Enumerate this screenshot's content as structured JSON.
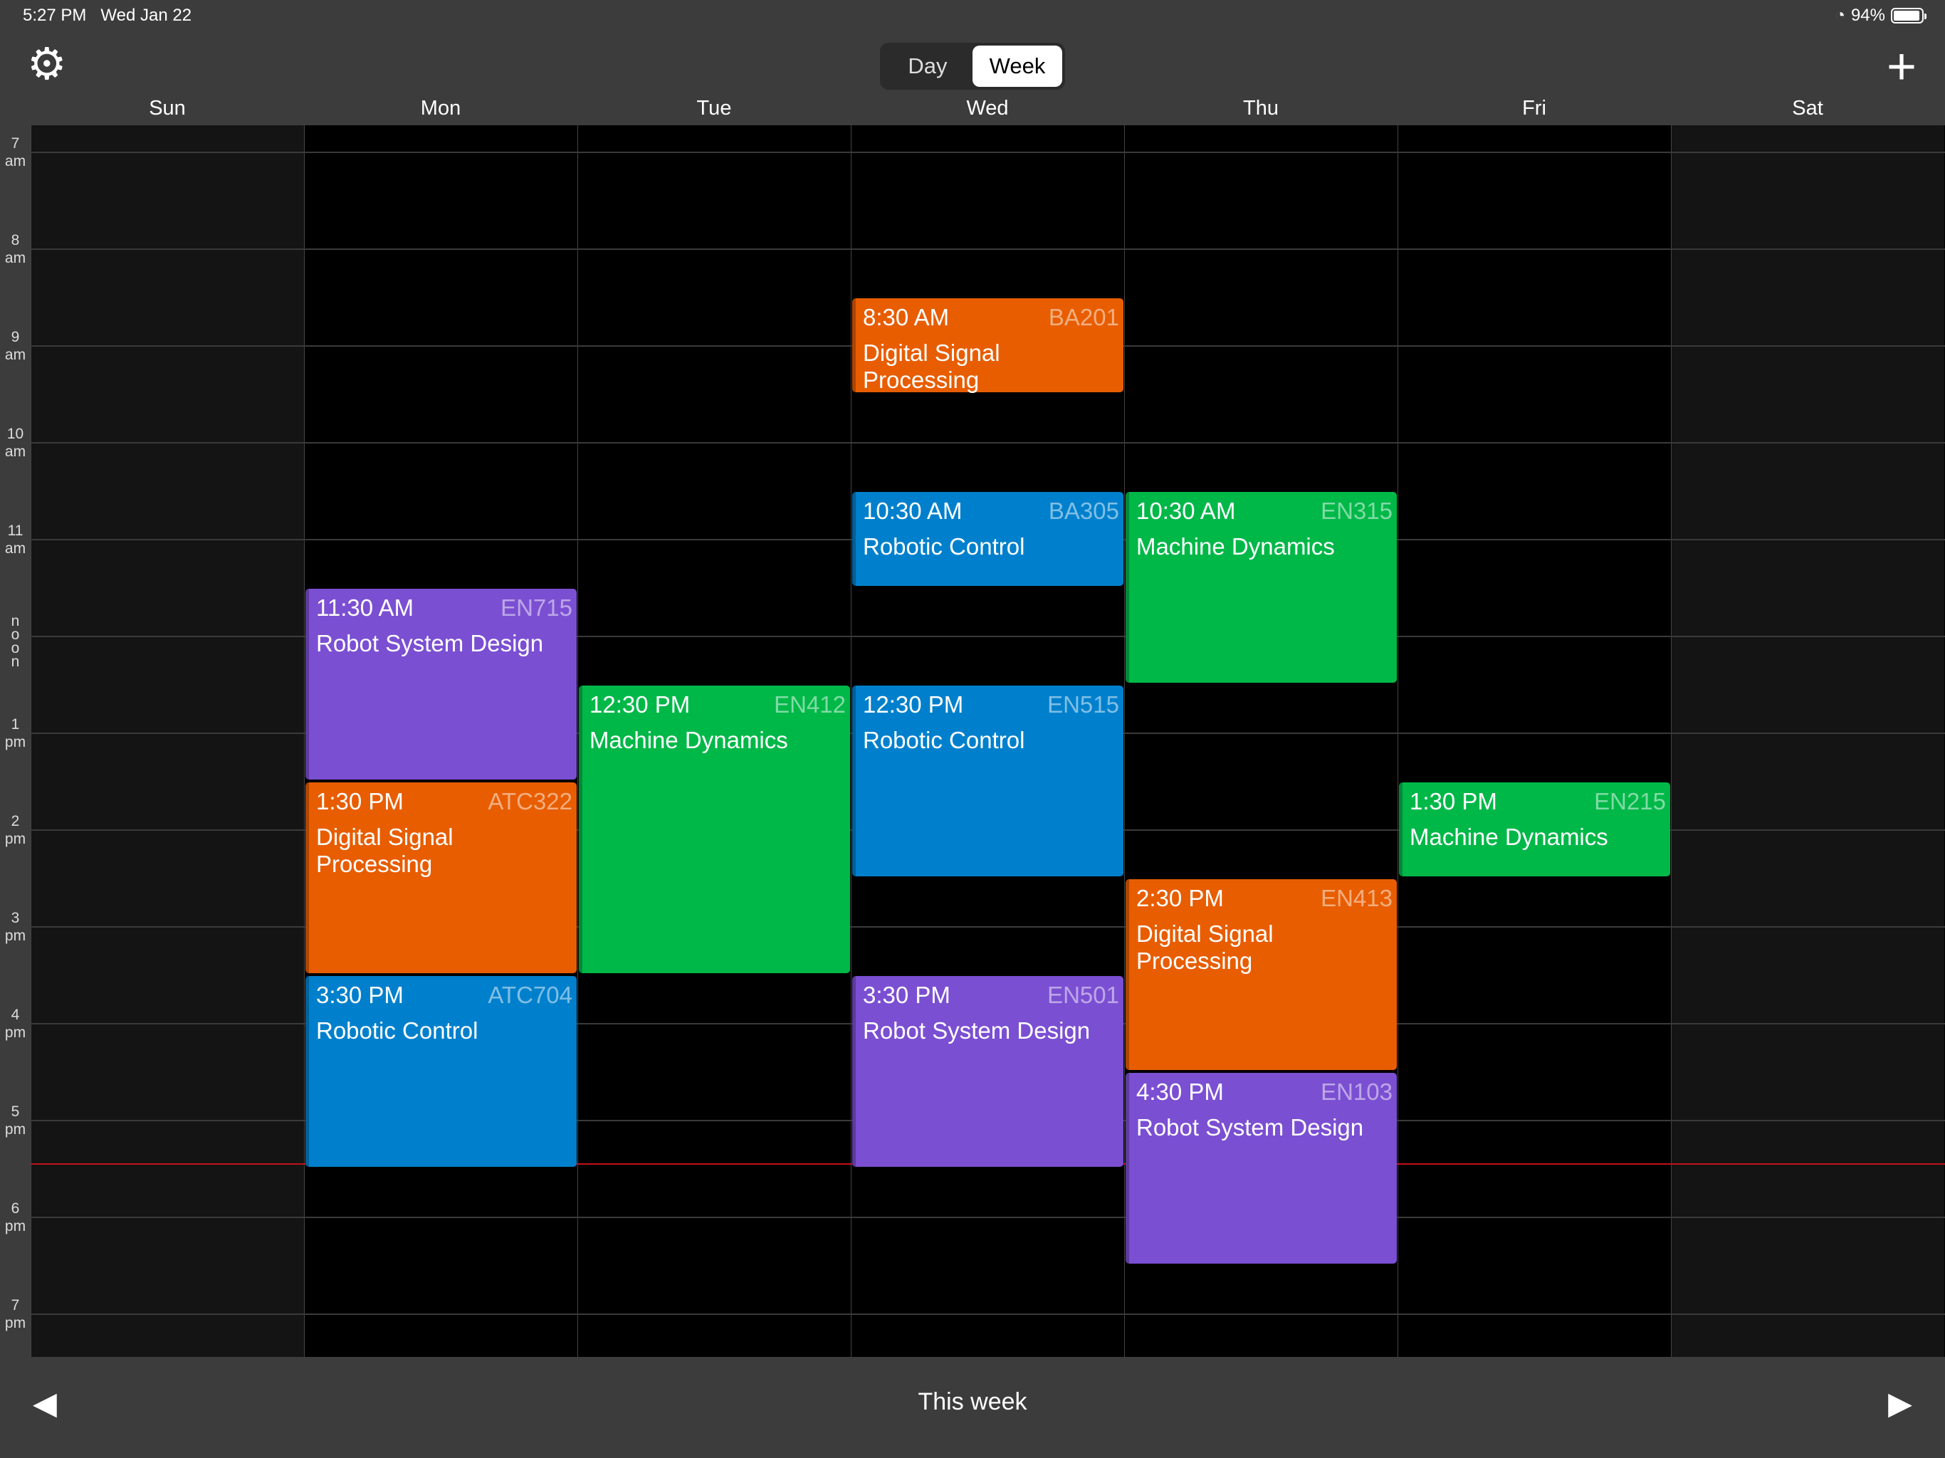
{
  "status_bar": {
    "time": "5:27 PM",
    "date": "Wed Jan 22",
    "battery": "94%",
    "battery_level": 0.94
  },
  "toolbar": {
    "settings_icon": "gear-icon",
    "add_icon": "plus-icon",
    "view_options": [
      "Day",
      "Week"
    ],
    "selected_view": "Week"
  },
  "days": [
    "Sun",
    "Mon",
    "Tue",
    "Wed",
    "Thu",
    "Fri",
    "Sat"
  ],
  "hours": [
    {
      "n": "7",
      "s": "am"
    },
    {
      "n": "8",
      "s": "am"
    },
    {
      "n": "9",
      "s": "am"
    },
    {
      "n": "10",
      "s": "am"
    },
    {
      "n": "11",
      "s": "am"
    },
    {
      "n": "noon",
      "s": ""
    },
    {
      "n": "1",
      "s": "pm"
    },
    {
      "n": "2",
      "s": "pm"
    },
    {
      "n": "3",
      "s": "pm"
    },
    {
      "n": "4",
      "s": "pm"
    },
    {
      "n": "5",
      "s": "pm"
    },
    {
      "n": "6",
      "s": "pm"
    },
    {
      "n": "7",
      "s": "pm"
    }
  ],
  "colors": {
    "orange": "#E85D00",
    "blue": "#0080CC",
    "green": "#00B848",
    "purple": "#7B4FD2",
    "now_line": "#C0121A"
  },
  "events": [
    {
      "day": 3,
      "start": "8:30 AM",
      "duration_h": 1,
      "code": "BA201",
      "title": "Digital Signal Processing",
      "color": "orange"
    },
    {
      "day": 3,
      "start": "10:30 AM",
      "duration_h": 1,
      "code": "BA305",
      "title": "Robotic Control",
      "color": "blue"
    },
    {
      "day": 4,
      "start": "10:30 AM",
      "duration_h": 2,
      "code": "EN315",
      "title": "Machine Dynamics",
      "color": "green"
    },
    {
      "day": 1,
      "start": "11:30 AM",
      "duration_h": 2,
      "code": "EN715",
      "title": "Robot System Design",
      "color": "purple"
    },
    {
      "day": 2,
      "start": "12:30 PM",
      "duration_h": 3,
      "code": "EN412",
      "title": "Machine Dynamics",
      "color": "green"
    },
    {
      "day": 3,
      "start": "12:30 PM",
      "duration_h": 2,
      "code": "EN515",
      "title": "Robotic Control",
      "color": "blue"
    },
    {
      "day": 1,
      "start": "1:30 PM",
      "duration_h": 2,
      "code": "ATC322",
      "title": "Digital Signal Processing",
      "color": "orange"
    },
    {
      "day": 5,
      "start": "1:30 PM",
      "duration_h": 1,
      "code": "EN215",
      "title": "Machine Dynamics",
      "color": "green"
    },
    {
      "day": 4,
      "start": "2:30 PM",
      "duration_h": 2,
      "code": "EN413",
      "title": "Digital Signal Processing",
      "color": "orange"
    },
    {
      "day": 1,
      "start": "3:30 PM",
      "duration_h": 2,
      "code": "ATC704",
      "title": "Robotic Control",
      "color": "blue"
    },
    {
      "day": 3,
      "start": "3:30 PM",
      "duration_h": 2,
      "code": "EN501",
      "title": "Robot System Design",
      "color": "purple"
    },
    {
      "day": 4,
      "start": "4:30 PM",
      "duration_h": 2,
      "code": "EN103",
      "title": "Robot System Design",
      "color": "purple"
    }
  ],
  "footer": {
    "label": "This week",
    "prev_icon": "triangle-left-icon",
    "next_icon": "triangle-right-icon"
  }
}
